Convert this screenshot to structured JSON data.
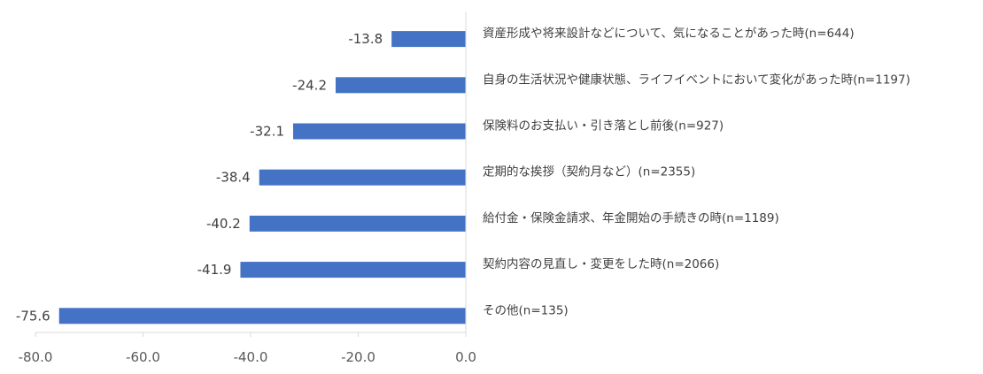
{
  "chart_data": {
    "type": "bar",
    "orientation": "horizontal",
    "categories": [
      "資産形成や将来設計などについて、気になることがあった時(n=644)",
      "自身の生活状況や健康状態、ライフイベントにおいて変化があった時(n=1197)",
      "保険料のお支払い・引き落とし前後(n=927)",
      "定期的な挨拶（契約月など）(n=2355)",
      "給付金・保険金請求、年金開始の手続きの時(n=1189)",
      "契約内容の見直し・変更をした時(n=2066)",
      "その他(n=135)"
    ],
    "values": [
      -13.8,
      -24.2,
      -32.1,
      -38.4,
      -40.2,
      -41.9,
      -75.6
    ],
    "value_labels": [
      "-13.8",
      "-24.2",
      "-32.1",
      "-38.4",
      "-40.2",
      "-41.9",
      "-75.6"
    ],
    "xlim": [
      -80,
      0
    ],
    "xticks": [
      "-80.0",
      "-60.0",
      "-40.0",
      "-20.0",
      "0.0"
    ],
    "xtick_values": [
      -80,
      -60,
      -40,
      -20,
      0
    ],
    "grid": false,
    "bar_color": "#4472C4",
    "axis_color": "#D9D9D9"
  }
}
